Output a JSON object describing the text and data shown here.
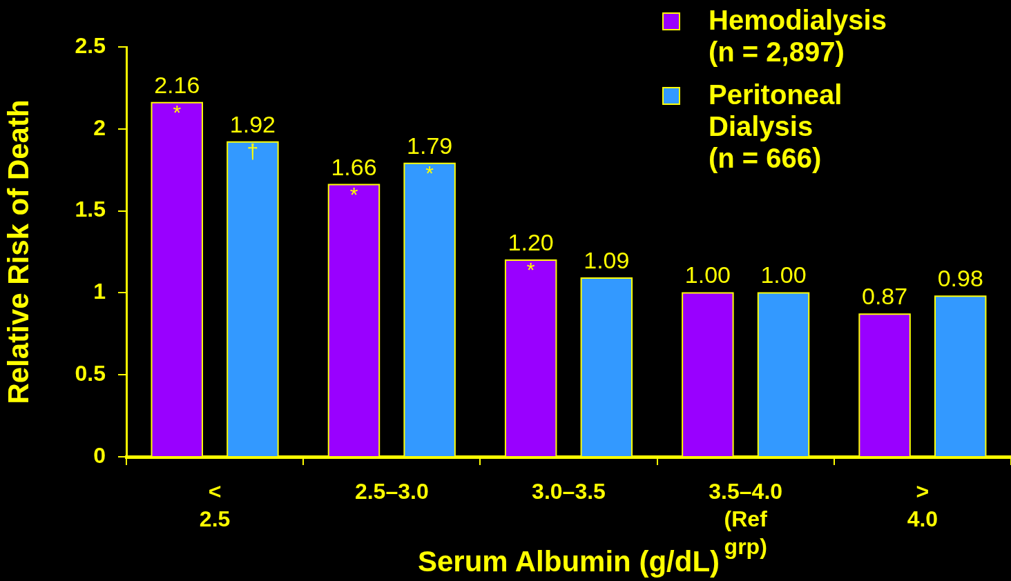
{
  "chart_data": {
    "type": "bar",
    "categories": [
      "< 2.5",
      "2.5–3.0",
      "3.0–3.5",
      "3.5–4.0 (Ref grp)",
      "> 4.0"
    ],
    "series": [
      {
        "name": "Hemodialysis (n = 2,897)",
        "color": "#9900ff",
        "values": [
          2.16,
          1.66,
          1.2,
          1.0,
          0.87
        ],
        "value_labels": [
          "2.16 *",
          "1.66 *",
          "1.20 *",
          "1.00",
          "0.87"
        ]
      },
      {
        "name": "Peritoneal Dialysis (n = 666)",
        "color": "#3399ff",
        "values": [
          1.92,
          1.79,
          1.09,
          1.0,
          0.98
        ],
        "value_labels": [
          "1.92 †",
          "1.79 *",
          "1.09",
          "1.00",
          "0.98"
        ]
      }
    ],
    "xlabel": "Serum Albumin (g/dL)",
    "ylabel": "Relative Risk of Death",
    "ylim": [
      0,
      2.5
    ],
    "yticks": [
      0,
      0.5,
      1,
      1.5,
      2,
      2.5
    ],
    "grid": false,
    "legend": "top right"
  }
}
